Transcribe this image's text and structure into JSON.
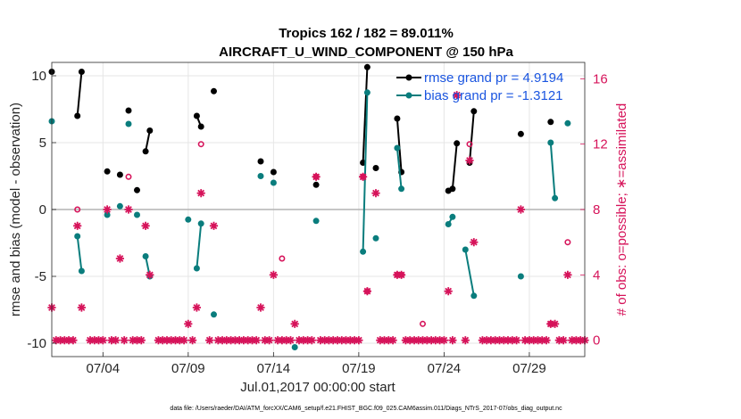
{
  "colors": {
    "rmse": "#000000",
    "bias": "#0a7d7d",
    "obs": "#d6135a",
    "legend_text": "#1a55e0",
    "grid": "#e6e6e6",
    "zero_line": "#b4b4b4"
  },
  "chart_data": {
    "type": "line",
    "title": "Tropics 162 / 182 = 89.011%",
    "subtitle": "AIRCRAFT_U_WIND_COMPONENT @ 150 hPa",
    "xlabel": "Jul.01,2017 00:00:00 start",
    "ylabel": "rmse and bias (model - observation)",
    "y2label": "# of obs: o=possible; ∗=assimilated",
    "footnote": "data file: /Users/raeder/DAI/ATM_forcXX/CAM6_setup/f.e21.FHIST_BGC.f09_025.CAM6assim.011/Diags_NTrS_2017-07/obs_diag_output.nc",
    "xlim": [
      0.5,
      31.75
    ],
    "ylim": [
      -11,
      11
    ],
    "y2lim": [
      -1,
      17
    ],
    "x_ticks": [
      3.5,
      8.5,
      13.5,
      18.5,
      23.5,
      28.5
    ],
    "x_tick_labels": [
      "07/04",
      "07/09",
      "07/14",
      "07/19",
      "07/24",
      "07/29"
    ],
    "y_ticks": [
      -10,
      -5,
      0,
      5,
      10
    ],
    "y_tick_labels": [
      "-10",
      "-5",
      "0",
      "5",
      "10"
    ],
    "y2_ticks": [
      0,
      4,
      8,
      12,
      16
    ],
    "y2_tick_labels": [
      "0",
      "4",
      "8",
      "12",
      "16"
    ],
    "legend": {
      "position": "top-right",
      "entries": [
        "rmse grand pr = 4.9194",
        "bias grand pr = -1.3121"
      ]
    },
    "series": [
      {
        "name": "rmse",
        "segments": [
          [
            [
              0.5,
              10.3
            ]
          ],
          [
            [
              2.0,
              7.0
            ],
            [
              2.25,
              10.3
            ]
          ],
          [
            [
              3.75,
              2.85
            ]
          ],
          [
            [
              4.5,
              2.6
            ]
          ],
          [
            [
              5.0,
              7.4
            ]
          ],
          [
            [
              5.5,
              1.45
            ]
          ],
          [
            [
              6.0,
              4.35
            ],
            [
              6.25,
              5.9
            ]
          ],
          [
            [
              9.0,
              7.0
            ],
            [
              9.25,
              6.2
            ]
          ],
          [
            [
              10.0,
              8.85
            ]
          ],
          [
            [
              12.75,
              3.6
            ]
          ],
          [
            [
              13.5,
              2.8
            ]
          ],
          [
            [
              16.0,
              1.85
            ]
          ],
          [
            [
              18.75,
              3.5
            ],
            [
              19.0,
              10.65
            ]
          ],
          [
            [
              19.5,
              3.1
            ]
          ],
          [
            [
              20.75,
              6.8
            ],
            [
              21.0,
              2.8
            ]
          ],
          [
            [
              23.75,
              1.4
            ],
            [
              24.0,
              1.55
            ],
            [
              24.25,
              4.95
            ]
          ],
          [
            [
              25.0,
              3.5
            ],
            [
              25.25,
              7.35
            ]
          ],
          [
            [
              28.0,
              5.65
            ]
          ],
          [
            [
              29.75,
              6.55
            ]
          ]
        ]
      },
      {
        "name": "bias",
        "segments": [
          [
            [
              0.5,
              6.6
            ]
          ],
          [
            [
              2.0,
              -2.0
            ],
            [
              2.25,
              -4.6
            ]
          ],
          [
            [
              3.75,
              -0.4
            ]
          ],
          [
            [
              4.5,
              0.25
            ]
          ],
          [
            [
              5.0,
              6.4
            ]
          ],
          [
            [
              5.5,
              -0.4
            ]
          ],
          [
            [
              6.0,
              -3.5
            ],
            [
              6.25,
              -5.0
            ]
          ],
          [
            [
              8.5,
              -0.75
            ]
          ],
          [
            [
              9.0,
              -4.4
            ],
            [
              9.25,
              -1.05
            ]
          ],
          [
            [
              10.0,
              -7.85
            ]
          ],
          [
            [
              12.75,
              2.5
            ]
          ],
          [
            [
              13.5,
              2.0
            ]
          ],
          [
            [
              14.75,
              -10.3
            ]
          ],
          [
            [
              16.0,
              -0.85
            ]
          ],
          [
            [
              18.75,
              -3.15
            ],
            [
              19.0,
              8.75
            ]
          ],
          [
            [
              19.5,
              -2.15
            ]
          ],
          [
            [
              20.75,
              4.6
            ],
            [
              21.0,
              1.55
            ]
          ],
          [
            [
              23.75,
              -1.1
            ],
            [
              24.0,
              -0.55
            ]
          ],
          [
            [
              24.75,
              -3.0
            ],
            [
              25.25,
              -6.45
            ]
          ],
          [
            [
              28.0,
              -5.0
            ]
          ],
          [
            [
              29.75,
              5.0
            ],
            [
              30.0,
              0.85
            ]
          ],
          [
            [
              30.75,
              6.45
            ]
          ]
        ]
      }
    ],
    "obs_assimilated": [
      [
        0.5,
        2
      ],
      [
        0.75,
        0
      ],
      [
        1.0,
        0
      ],
      [
        1.25,
        0
      ],
      [
        1.5,
        0
      ],
      [
        1.75,
        0
      ],
      [
        2.0,
        7
      ],
      [
        2.25,
        2
      ],
      [
        2.75,
        0
      ],
      [
        3.0,
        0
      ],
      [
        3.25,
        0
      ],
      [
        3.5,
        0
      ],
      [
        3.75,
        8
      ],
      [
        4.0,
        0
      ],
      [
        4.25,
        0
      ],
      [
        4.5,
        5
      ],
      [
        4.75,
        0
      ],
      [
        5.0,
        8
      ],
      [
        5.25,
        0
      ],
      [
        5.5,
        0
      ],
      [
        5.75,
        0
      ],
      [
        6.0,
        7
      ],
      [
        6.25,
        4
      ],
      [
        6.75,
        0
      ],
      [
        7.0,
        0
      ],
      [
        7.25,
        0
      ],
      [
        7.5,
        0
      ],
      [
        7.75,
        0
      ],
      [
        8.0,
        0
      ],
      [
        8.25,
        0
      ],
      [
        8.5,
        1
      ],
      [
        8.75,
        0
      ],
      [
        9.0,
        2
      ],
      [
        9.25,
        9
      ],
      [
        9.75,
        0
      ],
      [
        10.0,
        7
      ],
      [
        10.25,
        0
      ],
      [
        10.5,
        0
      ],
      [
        10.75,
        0
      ],
      [
        11.0,
        0
      ],
      [
        11.25,
        0
      ],
      [
        11.5,
        0
      ],
      [
        11.75,
        0
      ],
      [
        12.0,
        0
      ],
      [
        12.25,
        0
      ],
      [
        12.5,
        0
      ],
      [
        12.75,
        2
      ],
      [
        13.0,
        0
      ],
      [
        13.25,
        0
      ],
      [
        13.5,
        4
      ],
      [
        13.75,
        0
      ],
      [
        14.0,
        0
      ],
      [
        14.25,
        0
      ],
      [
        14.5,
        0
      ],
      [
        14.75,
        1
      ],
      [
        15.0,
        0
      ],
      [
        15.25,
        0
      ],
      [
        15.5,
        0
      ],
      [
        15.75,
        0
      ],
      [
        16.0,
        10
      ],
      [
        16.25,
        0
      ],
      [
        16.5,
        0
      ],
      [
        16.75,
        0
      ],
      [
        17.0,
        0
      ],
      [
        17.25,
        0
      ],
      [
        17.5,
        0
      ],
      [
        17.75,
        0
      ],
      [
        18.0,
        0
      ],
      [
        18.25,
        0
      ],
      [
        18.5,
        0
      ],
      [
        18.75,
        10
      ],
      [
        19.0,
        3
      ],
      [
        19.5,
        9
      ],
      [
        19.75,
        0
      ],
      [
        20.0,
        0
      ],
      [
        20.25,
        0
      ],
      [
        20.5,
        0
      ],
      [
        20.75,
        4
      ],
      [
        21.0,
        4
      ],
      [
        21.25,
        0
      ],
      [
        21.5,
        0
      ],
      [
        21.75,
        0
      ],
      [
        22.0,
        0
      ],
      [
        22.25,
        0
      ],
      [
        22.5,
        0
      ],
      [
        22.75,
        0
      ],
      [
        23.0,
        0
      ],
      [
        23.25,
        0
      ],
      [
        23.5,
        0
      ],
      [
        23.75,
        3
      ],
      [
        24.0,
        0
      ],
      [
        24.25,
        15
      ],
      [
        24.75,
        0
      ],
      [
        25.0,
        11
      ],
      [
        25.25,
        6
      ],
      [
        25.75,
        0
      ],
      [
        26.0,
        0
      ],
      [
        26.25,
        0
      ],
      [
        26.5,
        0
      ],
      [
        26.75,
        0
      ],
      [
        27.0,
        0
      ],
      [
        27.25,
        0
      ],
      [
        27.5,
        0
      ],
      [
        27.75,
        0
      ],
      [
        28.0,
        8
      ],
      [
        28.25,
        0
      ],
      [
        28.5,
        0
      ],
      [
        28.75,
        0
      ],
      [
        29.0,
        0
      ],
      [
        29.25,
        0
      ],
      [
        29.5,
        0
      ],
      [
        29.75,
        1
      ],
      [
        30.0,
        1
      ],
      [
        30.25,
        0
      ],
      [
        30.5,
        0
      ],
      [
        30.75,
        4
      ],
      [
        31.0,
        0
      ],
      [
        31.25,
        0
      ],
      [
        31.5,
        0
      ],
      [
        31.75,
        0
      ]
    ],
    "obs_possible": [
      [
        2.0,
        8
      ],
      [
        5.0,
        10
      ],
      [
        9.25,
        12
      ],
      [
        14.0,
        5
      ],
      [
        16.0,
        10
      ],
      [
        18.75,
        10
      ],
      [
        19.0,
        3
      ],
      [
        20.75,
        4
      ],
      [
        21.0,
        4
      ],
      [
        22.25,
        1
      ],
      [
        25.0,
        12
      ],
      [
        29.75,
        1
      ],
      [
        30.75,
        6
      ]
    ]
  }
}
